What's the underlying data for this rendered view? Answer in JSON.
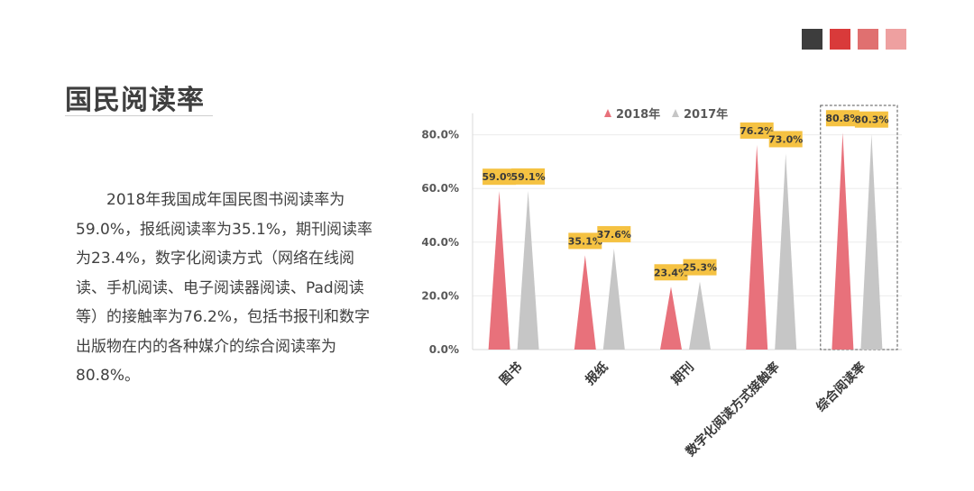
{
  "swatches": [
    "#3d3d3d",
    "#d93a3a",
    "#e07070",
    "#eea0a0"
  ],
  "page": {
    "title": "国民阅读率",
    "description": "2018年我国成年国民图书阅读率为59.0%，报纸阅读率为35.1%，期刊阅读率为23.4%，数字化阅读方式（网络在线阅读、手机阅读、电子阅读器阅读、Pad阅读等）的接触率为76.2%，包括书报刊和数字出版物在内的各种媒介的综合阅读率为80.8%。"
  },
  "chart_data": {
    "type": "bar",
    "categories": [
      "图书",
      "报纸",
      "期刊",
      "数字化阅读方式接触率",
      "综合阅读率"
    ],
    "series": [
      {
        "name": "2018年",
        "values": [
          59.0,
          35.1,
          23.4,
          76.2,
          80.8
        ],
        "labels": [
          "59.0%",
          "35.1%",
          "23.4%",
          "76.2%",
          "80.8%"
        ],
        "color": "#e8717b"
      },
      {
        "name": "2017年",
        "values": [
          59.1,
          37.6,
          25.3,
          73.0,
          80.3
        ],
        "labels": [
          "59.1%",
          "37.6%",
          "25.3%",
          "73.0%",
          "80.3%"
        ],
        "color": "#c6c6c6"
      }
    ],
    "ylim": [
      0,
      88
    ],
    "yticks": [
      0,
      20,
      40,
      60,
      80
    ],
    "ytick_labels": [
      "0.0%",
      "20.0%",
      "40.0%",
      "60.0%",
      "80.0%"
    ],
    "legend_position": "top",
    "label_color": "#f5c242",
    "highlighted_category": "综合阅读率"
  }
}
